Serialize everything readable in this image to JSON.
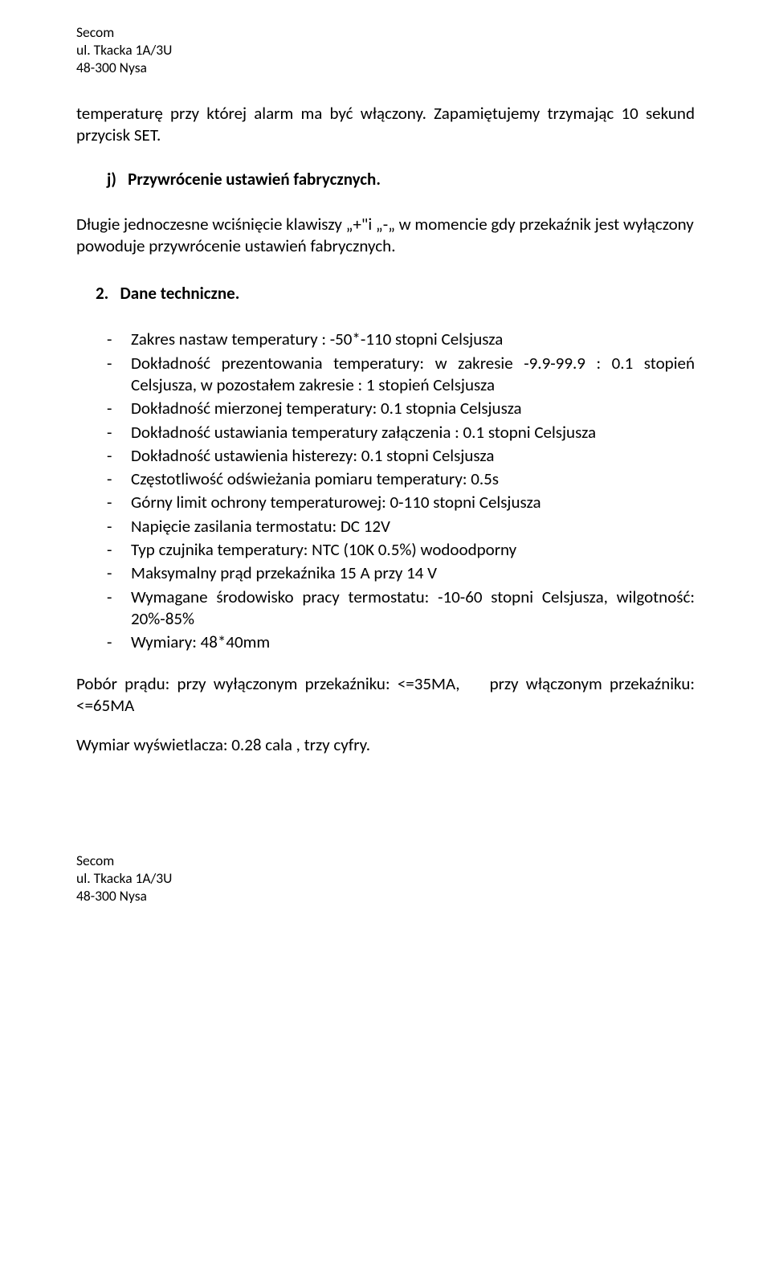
{
  "header": {
    "line1": "Secom",
    "line2": "ul. Tkacka 1A/3U",
    "line3": "48-300 Nysa"
  },
  "intro_para": "temperaturę przy której alarm ma być włączony. Zapamiętujemy trzymając 10 sekund przycisk SET.",
  "item_j": "j)   Przywrócenie ustawień fabrycznych.",
  "j_para": "Długie jednoczesne wciśnięcie klawiszy „+\"i „-„ w momencie gdy przekaźnik jest wyłączony powoduje przywrócenie ustawień fabrycznych.",
  "section2_heading": "2.   Dane techniczne.",
  "specs": [
    "Zakres nastaw temperatury : -50*-110 stopni Celsjusza",
    "Dokładność prezentowania temperatury: w zakresie -9.9-99.9 : 0.1 stopień Celsjusza, w pozostałem zakresie : 1 stopień Celsjusza",
    "Dokładność mierzonej temperatury: 0.1 stopnia Celsjusza",
    "Dokładność ustawiania temperatury załączenia : 0.1 stopni Celsjusza",
    "Dokładność ustawienia histerezy: 0.1 stopni Celsjusza",
    "Częstotliwość odświeżania pomiaru temperatury: 0.5s",
    "Górny limit ochrony temperaturowej: 0-110 stopni Celsjusza",
    "Napięcie zasilania termostatu: DC 12V",
    "Typ czujnika temperatury: NTC (10K 0.5%) wodoodporny",
    "Maksymalny prąd przekaźnika 15 A przy 14 V",
    "Wymagane środowisko pracy termostatu: -10-60 stopni Celsjusza, wilgotność: 20%-85%",
    "Wymiary: 48*40mm"
  ],
  "power_line": "Pobór prądu: przy wyłączonym przekaźniku: <=35MA,    przy włączonym przekaźniku: <=65MA",
  "display_line": "Wymiar wyświetlacza: 0.28 cala , trzy cyfry.",
  "footer": {
    "line1": "Secom",
    "line2": "ul. Tkacka 1A/3U",
    "line3": "48-300 Nysa"
  }
}
